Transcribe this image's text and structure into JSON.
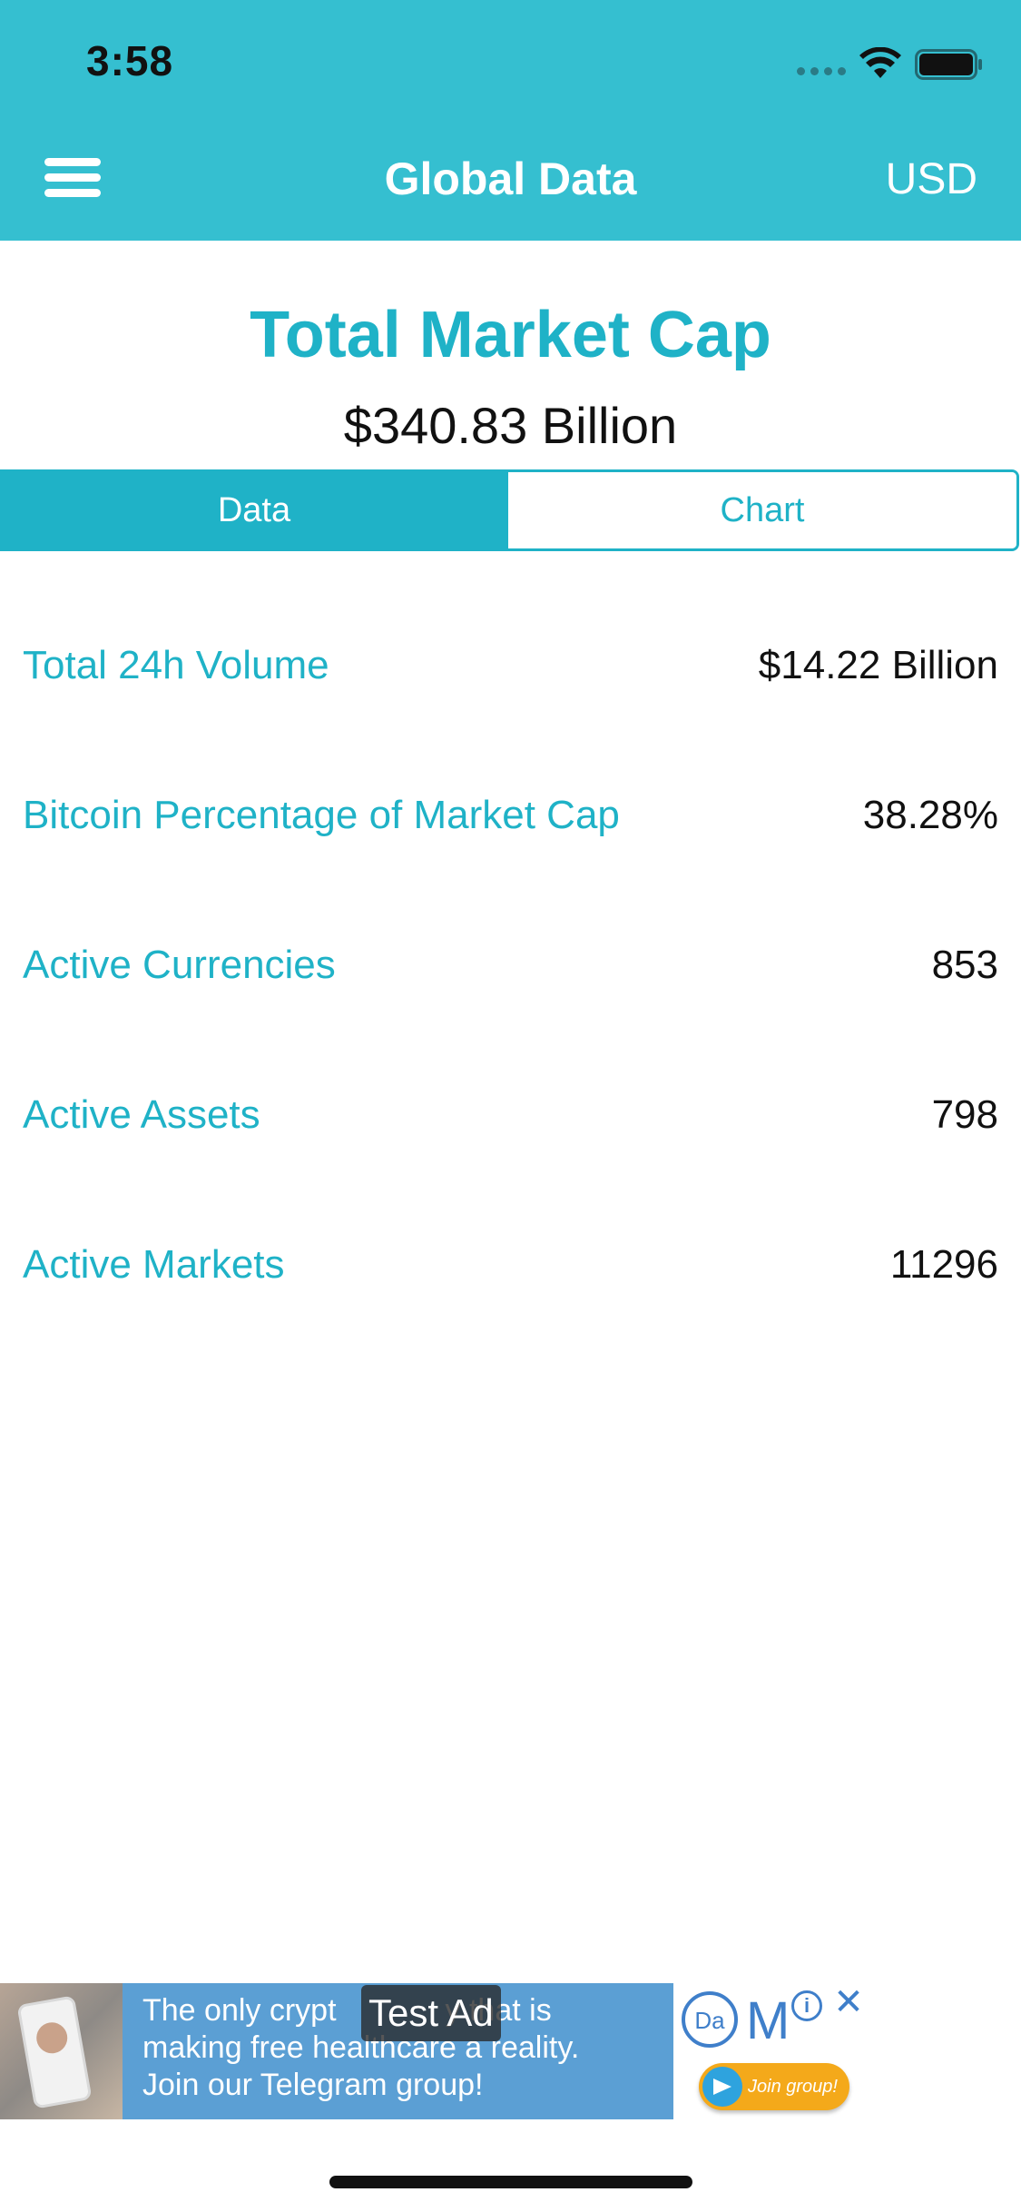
{
  "status_bar": {
    "time": "3:58"
  },
  "nav": {
    "title": "Global Data",
    "currency": "USD",
    "menu_icon": "hamburger-menu-icon"
  },
  "header": {
    "title": "Total Market Cap",
    "value": "$340.83 Billion"
  },
  "tabs": [
    {
      "label": "Data",
      "active": true
    },
    {
      "label": "Chart",
      "active": false
    }
  ],
  "rows": [
    {
      "label": "Total 24h Volume",
      "value": "$14.22 Billion"
    },
    {
      "label": "Bitcoin Percentage of Market Cap",
      "value": "38.28%"
    },
    {
      "label": "Active Currencies",
      "value": "853"
    },
    {
      "label": "Active Assets",
      "value": "798"
    },
    {
      "label": "Active Markets",
      "value": "11296"
    }
  ],
  "ad": {
    "label": "Test Ad",
    "text_line1": "The only crypt",
    "text_line1_tail": "y that is",
    "text_line2": "making free healthcare a reality.",
    "text_line3": "Join our Telegram group!",
    "brand": "M",
    "info_glyph": "i",
    "close_glyph": "✕",
    "join_label": "Join group!"
  },
  "colors": {
    "header_bg": "#35bfd0",
    "accent": "#1fb2c7",
    "text": "#111111",
    "ad_blue": "#5b9fd4",
    "ad_orange": "#f4a91a"
  }
}
